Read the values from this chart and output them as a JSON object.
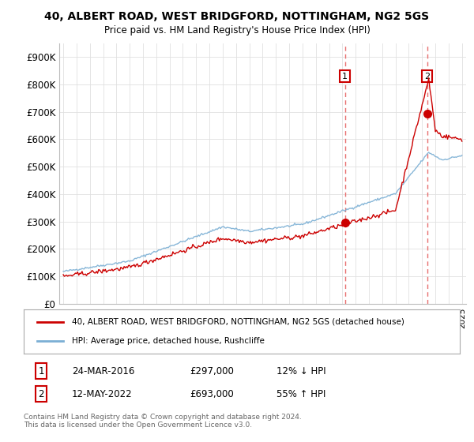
{
  "title_line1": "40, ALBERT ROAD, WEST BRIDGFORD, NOTTINGHAM, NG2 5GS",
  "title_line2": "Price paid vs. HM Land Registry's House Price Index (HPI)",
  "ylim": [
    0,
    950000
  ],
  "yticks": [
    0,
    100000,
    200000,
    300000,
    400000,
    500000,
    600000,
    700000,
    800000,
    900000
  ],
  "ytick_labels": [
    "£0",
    "£100K",
    "£200K",
    "£300K",
    "£400K",
    "£500K",
    "£600K",
    "£700K",
    "£800K",
    "£900K"
  ],
  "hpi_color": "#7bafd4",
  "property_color": "#cc0000",
  "vline_color": "#e87070",
  "background_color": "#ffffff",
  "grid_color": "#e0e0e0",
  "legend_label_property": "40, ALBERT ROAD, WEST BRIDGFORD, NOTTINGHAM, NG2 5GS (detached house)",
  "legend_label_hpi": "HPI: Average price, detached house, Rushcliffe",
  "sale1_label": "1",
  "sale1_date": "24-MAR-2016",
  "sale1_price": "£297,000",
  "sale1_hpi": "12% ↓ HPI",
  "sale1_year": 2016.2,
  "sale1_value": 297000,
  "sale2_label": "2",
  "sale2_date": "12-MAY-2022",
  "sale2_price": "£693,000",
  "sale2_hpi": "55% ↑ HPI",
  "sale2_year": 2022.37,
  "sale2_value": 693000,
  "footnote": "Contains HM Land Registry data © Crown copyright and database right 2024.\nThis data is licensed under the Open Government Licence v3.0."
}
